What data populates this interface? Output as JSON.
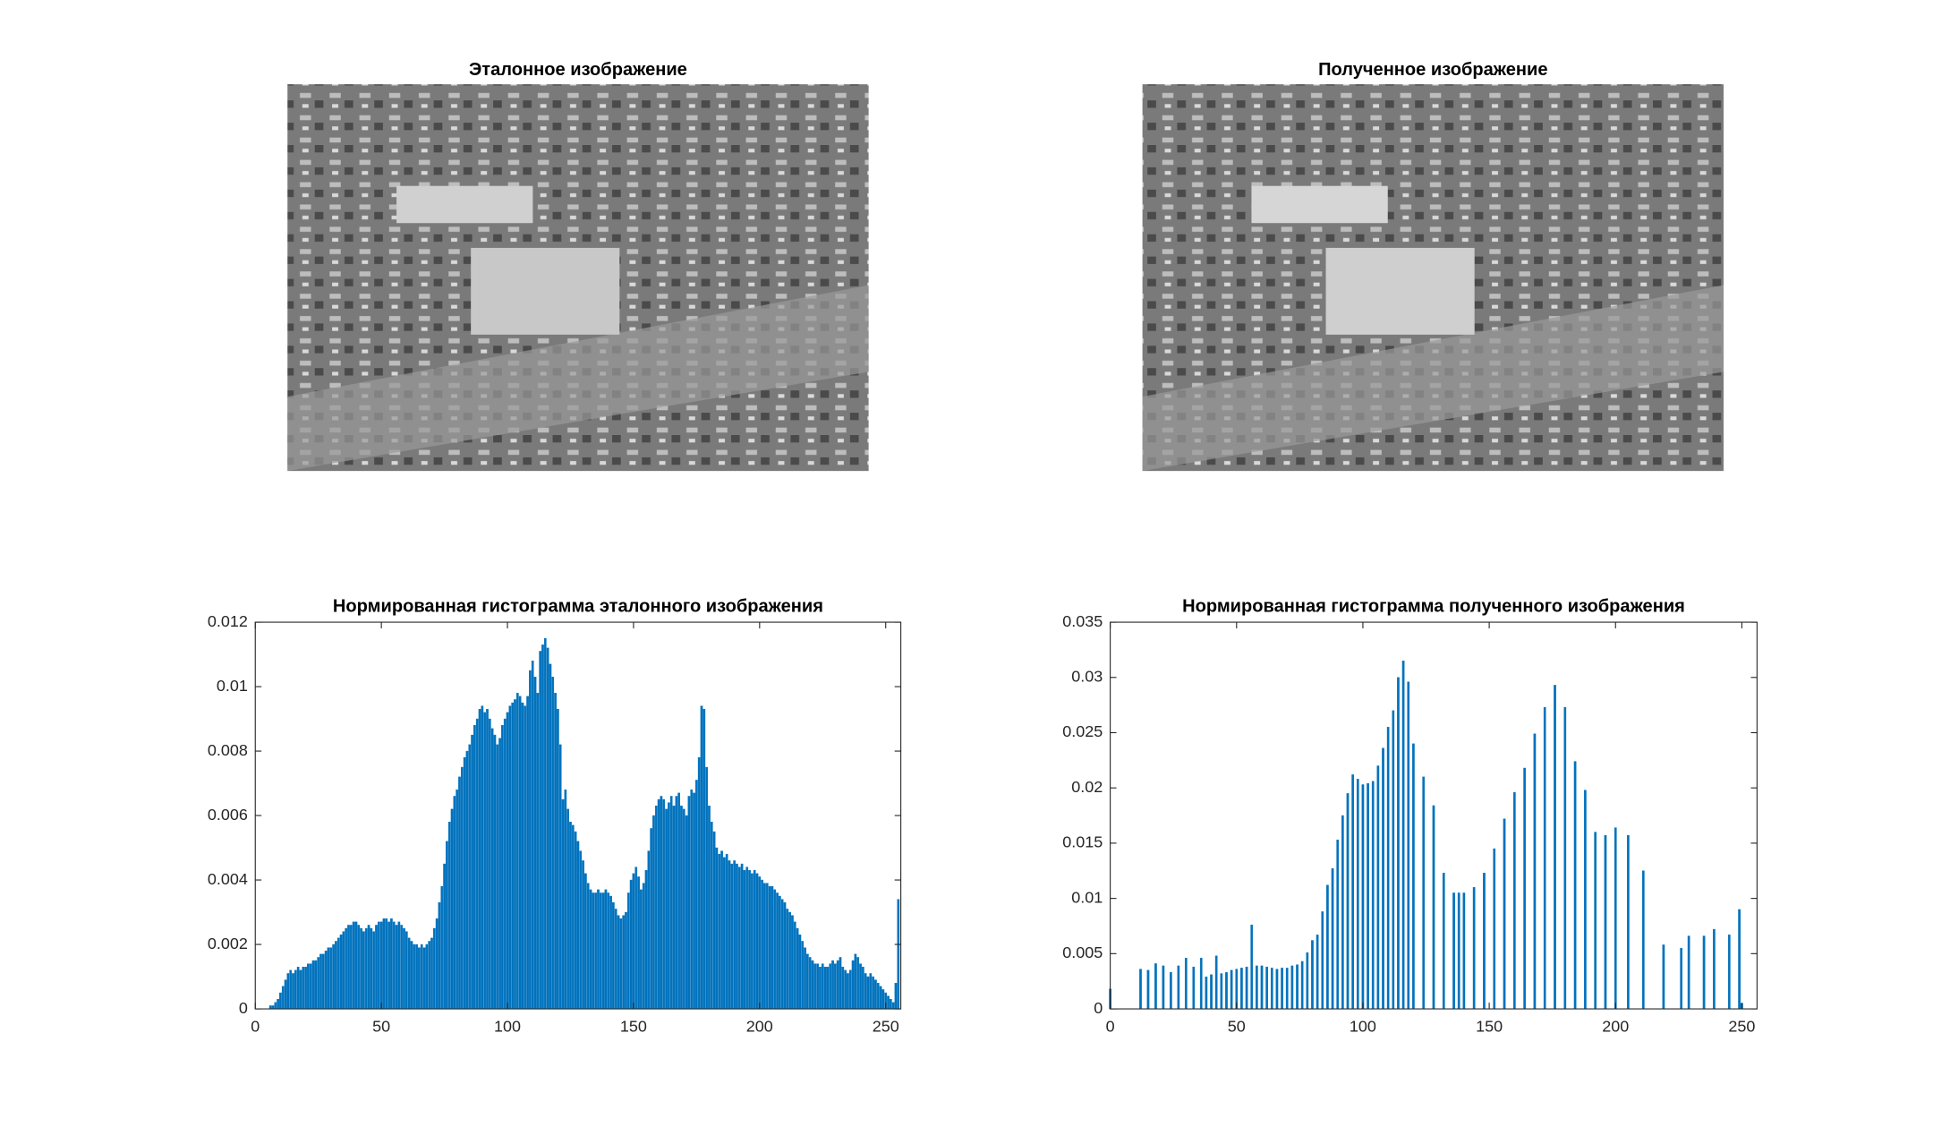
{
  "images": [
    {
      "title": "Эталонное изображение"
    },
    {
      "title": "Полученное изображение"
    }
  ],
  "chart_data": [
    {
      "type": "bar",
      "title": "Нормированная гистограмма эталонного изображения",
      "color": "#0072bd",
      "xlim": [
        0,
        256
      ],
      "xticks": [
        0,
        50,
        100,
        150,
        200,
        250
      ],
      "ylim": [
        0,
        0.012
      ],
      "yticks": [
        0,
        0.002,
        0.004,
        0.006,
        0.008,
        0.01,
        0.012
      ],
      "x": [
        0,
        1,
        2,
        3,
        4,
        5,
        6,
        7,
        8,
        9,
        10,
        11,
        12,
        13,
        14,
        15,
        16,
        17,
        18,
        19,
        20,
        21,
        22,
        23,
        24,
        25,
        26,
        27,
        28,
        29,
        30,
        31,
        32,
        33,
        34,
        35,
        36,
        37,
        38,
        39,
        40,
        41,
        42,
        43,
        44,
        45,
        46,
        47,
        48,
        49,
        50,
        51,
        52,
        53,
        54,
        55,
        56,
        57,
        58,
        59,
        60,
        61,
        62,
        63,
        64,
        65,
        66,
        67,
        68,
        69,
        70,
        71,
        72,
        73,
        74,
        75,
        76,
        77,
        78,
        79,
        80,
        81,
        82,
        83,
        84,
        85,
        86,
        87,
        88,
        89,
        90,
        91,
        92,
        93,
        94,
        95,
        96,
        97,
        98,
        99,
        100,
        101,
        102,
        103,
        104,
        105,
        106,
        107,
        108,
        109,
        110,
        111,
        112,
        113,
        114,
        115,
        116,
        117,
        118,
        119,
        120,
        121,
        122,
        123,
        124,
        125,
        126,
        127,
        128,
        129,
        130,
        131,
        132,
        133,
        134,
        135,
        136,
        137,
        138,
        139,
        140,
        141,
        142,
        143,
        144,
        145,
        146,
        147,
        148,
        149,
        150,
        151,
        152,
        153,
        154,
        155,
        156,
        157,
        158,
        159,
        160,
        161,
        162,
        163,
        164,
        165,
        166,
        167,
        168,
        169,
        170,
        171,
        172,
        173,
        174,
        175,
        176,
        177,
        178,
        179,
        180,
        181,
        182,
        183,
        184,
        185,
        186,
        187,
        188,
        189,
        190,
        191,
        192,
        193,
        194,
        195,
        196,
        197,
        198,
        199,
        200,
        201,
        202,
        203,
        204,
        205,
        206,
        207,
        208,
        209,
        210,
        211,
        212,
        213,
        214,
        215,
        216,
        217,
        218,
        219,
        220,
        221,
        222,
        223,
        224,
        225,
        226,
        227,
        228,
        229,
        230,
        231,
        232,
        233,
        234,
        235,
        236,
        237,
        238,
        239,
        240,
        241,
        242,
        243,
        244,
        245,
        246,
        247,
        248,
        249,
        250,
        251,
        252,
        253,
        254,
        255
      ],
      "values": [
        0,
        0,
        0,
        0,
        0,
        0,
        0.0001,
        0.0001,
        0.0002,
        0.0003,
        0.0005,
        0.0007,
        0.0009,
        0.0011,
        0.0012,
        0.0011,
        0.0012,
        0.0013,
        0.0012,
        0.0013,
        0.0013,
        0.0014,
        0.0014,
        0.0015,
        0.0015,
        0.0016,
        0.0017,
        0.0017,
        0.0018,
        0.0019,
        0.0019,
        0.002,
        0.0021,
        0.0022,
        0.0023,
        0.0024,
        0.0025,
        0.0026,
        0.0026,
        0.0027,
        0.0027,
        0.0026,
        0.0025,
        0.0024,
        0.0025,
        0.0026,
        0.0025,
        0.0024,
        0.0026,
        0.0027,
        0.0027,
        0.0028,
        0.0028,
        0.0027,
        0.0028,
        0.0027,
        0.0026,
        0.0027,
        0.0026,
        0.0025,
        0.0024,
        0.0022,
        0.0021,
        0.002,
        0.002,
        0.0019,
        0.002,
        0.0019,
        0.002,
        0.0021,
        0.0022,
        0.0025,
        0.0028,
        0.0033,
        0.0038,
        0.0045,
        0.0052,
        0.0058,
        0.0062,
        0.0066,
        0.0068,
        0.0072,
        0.0075,
        0.0078,
        0.008,
        0.0082,
        0.0085,
        0.0088,
        0.009,
        0.0093,
        0.0094,
        0.0092,
        0.0093,
        0.009,
        0.0087,
        0.0085,
        0.0082,
        0.0084,
        0.0088,
        0.009,
        0.0092,
        0.0094,
        0.0095,
        0.0096,
        0.0098,
        0.0097,
        0.0095,
        0.0094,
        0.0097,
        0.0105,
        0.0108,
        0.0103,
        0.0098,
        0.0111,
        0.0113,
        0.0115,
        0.0112,
        0.0107,
        0.0103,
        0.0098,
        0.0093,
        0.0082,
        0.0065,
        0.0068,
        0.0062,
        0.0058,
        0.0057,
        0.0055,
        0.0052,
        0.0049,
        0.0046,
        0.0042,
        0.0039,
        0.0037,
        0.0036,
        0.0036,
        0.0037,
        0.0036,
        0.0036,
        0.0037,
        0.0036,
        0.0035,
        0.0033,
        0.0031,
        0.0029,
        0.0028,
        0.0029,
        0.003,
        0.0036,
        0.004,
        0.0042,
        0.0044,
        0.0041,
        0.0037,
        0.0039,
        0.0043,
        0.0049,
        0.0056,
        0.006,
        0.0063,
        0.0065,
        0.0066,
        0.0065,
        0.0062,
        0.0064,
        0.0066,
        0.0063,
        0.0066,
        0.0067,
        0.0063,
        0.0062,
        0.006,
        0.0066,
        0.0068,
        0.0067,
        0.0071,
        0.0078,
        0.0094,
        0.0093,
        0.0075,
        0.0063,
        0.0058,
        0.0055,
        0.005,
        0.0048,
        0.0049,
        0.0047,
        0.0048,
        0.0046,
        0.0045,
        0.0046,
        0.0045,
        0.0044,
        0.0045,
        0.0043,
        0.0044,
        0.0043,
        0.0042,
        0.0043,
        0.0042,
        0.0041,
        0.004,
        0.0039,
        0.0039,
        0.0038,
        0.0038,
        0.0037,
        0.0036,
        0.0035,
        0.0034,
        0.0033,
        0.0031,
        0.003,
        0.0029,
        0.0027,
        0.0025,
        0.0023,
        0.0021,
        0.0019,
        0.0017,
        0.0016,
        0.0015,
        0.0014,
        0.0014,
        0.0013,
        0.0014,
        0.0013,
        0.0013,
        0.0014,
        0.0015,
        0.0014,
        0.0015,
        0.0016,
        0.0013,
        0.0012,
        0.0011,
        0.0012,
        0.0015,
        0.0017,
        0.0016,
        0.0014,
        0.0013,
        0.0011,
        0.001,
        0.0011,
        0.001,
        0.0009,
        0.0008,
        0.0007,
        0.0006,
        0.0005,
        0.0004,
        0.0003,
        0.0002,
        0.0008,
        0.0034
      ]
    },
    {
      "type": "bar",
      "title": "Нормированная гистограмма полученного изображения",
      "color": "#0072bd",
      "xlim": [
        0,
        256
      ],
      "xticks": [
        0,
        50,
        100,
        150,
        200,
        250
      ],
      "ylim": [
        0,
        0.035
      ],
      "yticks": [
        0,
        0.005,
        0.01,
        0.015,
        0.02,
        0.025,
        0.03,
        0.035
      ],
      "x": [
        0,
        12,
        15,
        18,
        21,
        24,
        27,
        30,
        33,
        36,
        38,
        40,
        42,
        44,
        46,
        48,
        50,
        52,
        54,
        56,
        58,
        60,
        62,
        64,
        66,
        68,
        70,
        72,
        74,
        76,
        78,
        80,
        82,
        84,
        86,
        88,
        90,
        92,
        94,
        96,
        98,
        100,
        102,
        104,
        106,
        108,
        110,
        112,
        114,
        116,
        118,
        120,
        124,
        128,
        132,
        136,
        138,
        140,
        144,
        148,
        152,
        156,
        160,
        164,
        168,
        172,
        176,
        180,
        184,
        188,
        192,
        196,
        200,
        205,
        211,
        219,
        226,
        229,
        235,
        239,
        245,
        249,
        250
      ],
      "values": [
        0.0018,
        0.0036,
        0.0035,
        0.0041,
        0.0039,
        0.0033,
        0.0039,
        0.0046,
        0.0038,
        0.0046,
        0.0029,
        0.0031,
        0.0048,
        0.0032,
        0.0033,
        0.0035,
        0.0036,
        0.0037,
        0.0038,
        0.0076,
        0.0039,
        0.0039,
        0.0038,
        0.0037,
        0.0036,
        0.0037,
        0.0037,
        0.0039,
        0.004,
        0.0043,
        0.0051,
        0.0062,
        0.0067,
        0.0088,
        0.0112,
        0.0127,
        0.0153,
        0.0175,
        0.0195,
        0.0212,
        0.0208,
        0.0203,
        0.0204,
        0.0206,
        0.022,
        0.0236,
        0.0255,
        0.027,
        0.03,
        0.0315,
        0.0296,
        0.024,
        0.021,
        0.0184,
        0.0123,
        0.0105,
        0.0105,
        0.0105,
        0.011,
        0.0123,
        0.0145,
        0.0172,
        0.0196,
        0.0218,
        0.0249,
        0.0273,
        0.0293,
        0.0273,
        0.0224,
        0.0198,
        0.016,
        0.0157,
        0.0164,
        0.0157,
        0.0125,
        0.0058,
        0.0055,
        0.0066,
        0.0066,
        0.0072,
        0.0067,
        0.009,
        0.0005
      ]
    }
  ]
}
